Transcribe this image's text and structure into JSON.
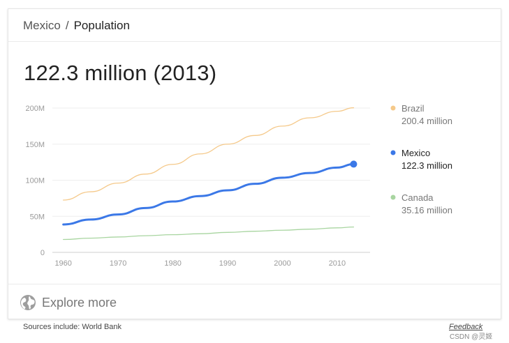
{
  "breadcrumb": {
    "country": "Mexico",
    "separator": "/",
    "topic": "Population"
  },
  "headline": "122.3 million (2013)",
  "explore": {
    "label": "Explore more",
    "icon": "globe-icon"
  },
  "footer": {
    "source": "Sources include: World Bank",
    "feedback": "Feedback",
    "watermark": "CSDN @灵姬"
  },
  "chart_data": {
    "type": "line",
    "title": "",
    "xlabel": "",
    "ylabel": "",
    "xlim": [
      1958,
      2016
    ],
    "ylim": [
      0,
      200
    ],
    "grid": true,
    "legend_position": "right",
    "x_ticks": [
      1960,
      1970,
      1980,
      1990,
      2000,
      2010
    ],
    "y_ticks": [
      0,
      50,
      100,
      150,
      200
    ],
    "y_tick_labels": [
      "0",
      "50M",
      "100M",
      "150M",
      "200M"
    ],
    "series": [
      {
        "name": "Brazil",
        "legend_value": "200.4 million",
        "color": "#f5c98a",
        "highlighted": false,
        "x": [
          1960,
          1965,
          1970,
          1975,
          1980,
          1985,
          1990,
          1995,
          2000,
          2005,
          2010,
          2013
        ],
        "y": [
          72.5,
          84,
          96,
          108.5,
          122,
          136.5,
          150,
          162,
          175,
          186.5,
          195.5,
          200.4
        ]
      },
      {
        "name": "Mexico",
        "legend_value": "122.3 million",
        "color": "#3b78e7",
        "highlighted": true,
        "x": [
          1960,
          1965,
          1970,
          1975,
          1980,
          1985,
          1990,
          1995,
          2000,
          2005,
          2010,
          2013
        ],
        "y": [
          38.7,
          45.5,
          52.5,
          61.5,
          70.5,
          78,
          86,
          95,
          103.5,
          110,
          117.5,
          122.3
        ]
      },
      {
        "name": "Canada",
        "legend_value": "35.16 million",
        "color": "#a8d5a0",
        "highlighted": false,
        "x": [
          1960,
          1965,
          1970,
          1975,
          1980,
          1985,
          1990,
          1995,
          2000,
          2005,
          2010,
          2013
        ],
        "y": [
          17.9,
          19.7,
          21.3,
          23.1,
          24.5,
          25.8,
          27.7,
          29.3,
          30.7,
          32.2,
          34.0,
          35.16
        ]
      }
    ]
  }
}
